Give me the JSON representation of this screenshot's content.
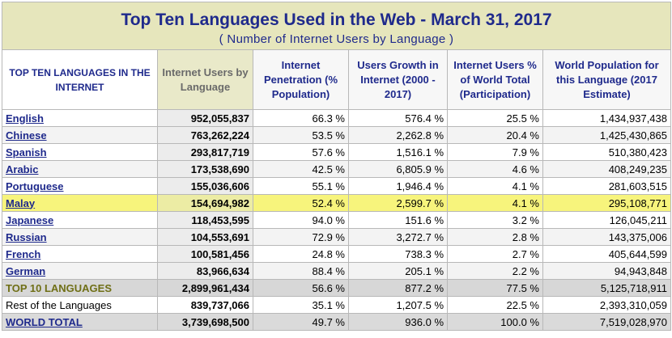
{
  "title": "Top Ten Languages Used in the Web - March 31, 2017",
  "subtitle": "( Number of Internet Users by Language )",
  "headers": [
    "TOP TEN LANGUAGES IN THE INTERNET",
    "Internet Users by Language",
    "Internet Penetration (% Population)",
    "Users Growth in Internet (2000 - 2017)",
    "Internet Users % of World Total (Participation)",
    "World Population for this Language (2017 Estimate)"
  ],
  "rows": [
    {
      "language": "English",
      "users": "952,055,837",
      "penetration": "66.3 %",
      "growth": "576.4 %",
      "share": "25.5 %",
      "population": "1,434,937,438"
    },
    {
      "language": "Chinese",
      "users": "763,262,224",
      "penetration": "53.5 %",
      "growth": "2,262.8 %",
      "share": "20.4 %",
      "population": "1,425,430,865"
    },
    {
      "language": "Spanish",
      "users": "293,817,719",
      "penetration": "57.6 %",
      "growth": "1,516.1 %",
      "share": "7.9 %",
      "population": "510,380,423"
    },
    {
      "language": "Arabic",
      "users": "173,538,690",
      "penetration": "42.5 %",
      "growth": "6,805.9 %",
      "share": "4.6 %",
      "population": "408,249,235"
    },
    {
      "language": "Portuguese",
      "users": "155,036,606",
      "penetration": "55.1 %",
      "growth": "1,946.4 %",
      "share": "4.1 %",
      "population": "281,603,515"
    },
    {
      "language": "Malay",
      "users": "154,694,982",
      "penetration": "52.4 %",
      "growth": "2,599.7 %",
      "share": "4.1 %",
      "population": "295,108,771"
    },
    {
      "language": "Japanese",
      "users": "118,453,595",
      "penetration": "94.0 %",
      "growth": "151.6 %",
      "share": "3.2 %",
      "population": "126,045,211"
    },
    {
      "language": "Russian",
      "users": "104,553,691",
      "penetration": "72.9 %",
      "growth": "3,272.7 %",
      "share": "2.8 %",
      "population": "143,375,006"
    },
    {
      "language": "French",
      "users": "100,581,456",
      "penetration": "24.8 %",
      "growth": "738.3 %",
      "share": "2.7 %",
      "population": "405,644,599"
    },
    {
      "language": "German",
      "users": "83,966,634",
      "penetration": "88.4 %",
      "growth": "205.1 %",
      "share": "2.2 %",
      "population": "94,943,848"
    }
  ],
  "summary": {
    "top10": {
      "label": "TOP 10 LANGUAGES",
      "users": "2,899,961,434",
      "penetration": "56.6 %",
      "growth": "877.2 %",
      "share": "77.5 %",
      "population": "5,125,718,911"
    },
    "rest": {
      "label": "Rest of the Languages",
      "users": "839,737,066",
      "penetration": "35.1 %",
      "growth": "1,207.5 %",
      "share": "22.5 %",
      "population": "2,393,310,059"
    },
    "world": {
      "label": "WORLD TOTAL",
      "users": "3,739,698,500",
      "penetration": "49.7 %",
      "growth": "936.0 %",
      "share": "100.0 %",
      "population": "7,519,028,970"
    }
  },
  "colors": {
    "title_bg": "#e6e6bc",
    "title_text": "#1f2a8c",
    "highlight": "#f7f47c",
    "total_bg": "#d7d7d7"
  }
}
